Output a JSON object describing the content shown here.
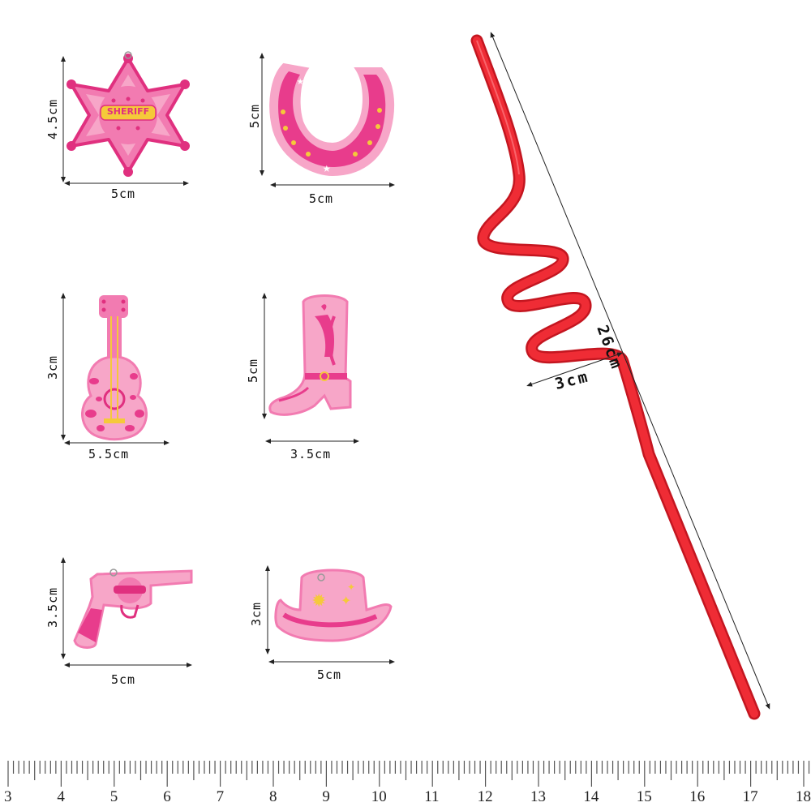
{
  "items": [
    {
      "name": "sheriff-badge",
      "badge_text": "SHERIFF",
      "width_label": "5cm",
      "height_label": "4.5cm"
    },
    {
      "name": "horseshoe",
      "width_label": "5cm",
      "height_label": "5cm"
    },
    {
      "name": "guitar",
      "width_label": "5.5cm",
      "height_label": "3cm"
    },
    {
      "name": "cowboy-boot",
      "width_label": "3.5cm",
      "height_label": "5cm"
    },
    {
      "name": "revolver",
      "width_label": "5cm",
      "height_label": "3.5cm"
    },
    {
      "name": "cowboy-hat",
      "width_label": "5cm",
      "height_label": "3cm"
    }
  ],
  "straw": {
    "length_label": "26cm",
    "coil_label": "3cm",
    "color": "#e8232b"
  },
  "colors": {
    "pink_dark": "#e83c8c",
    "pink_light": "#f7a6c8",
    "yellow": "#f5c93a"
  },
  "ruler": {
    "numbers": [
      "3",
      "4",
      "5",
      "6",
      "7",
      "8",
      "9",
      "10",
      "11",
      "12",
      "13",
      "14",
      "15",
      "16",
      "17",
      "18"
    ]
  }
}
